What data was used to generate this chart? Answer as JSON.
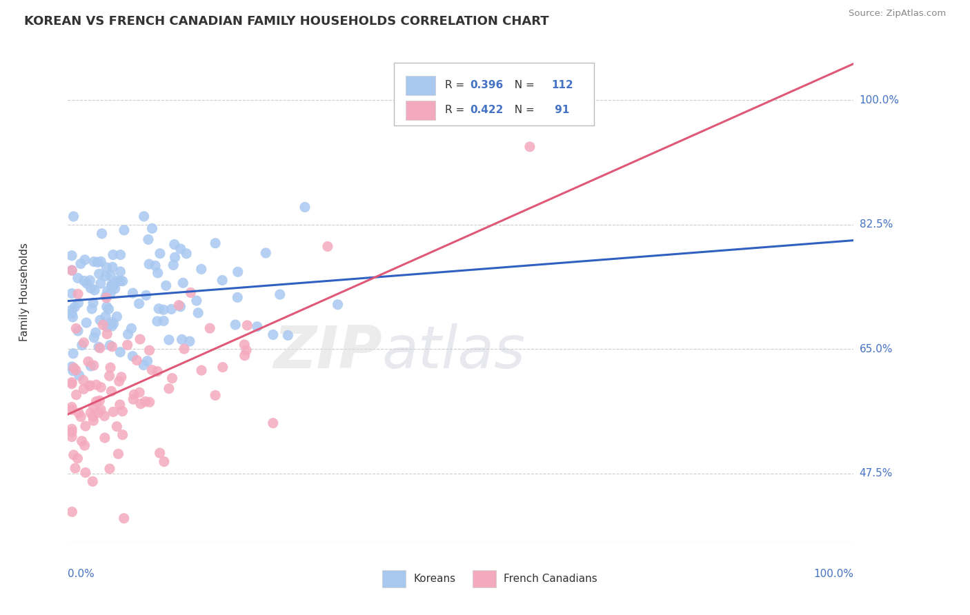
{
  "title": "KOREAN VS FRENCH CANADIAN FAMILY HOUSEHOLDS CORRELATION CHART",
  "source": "Source: ZipAtlas.com",
  "ylabel": "Family Households",
  "yticks": [
    0.475,
    0.65,
    0.825,
    1.0
  ],
  "ytick_labels": [
    "47.5%",
    "65.0%",
    "82.5%",
    "100.0%"
  ],
  "xlim": [
    0.0,
    1.0
  ],
  "ylim": [
    0.38,
    1.08
  ],
  "korean_color": "#A8C8F0",
  "french_color": "#F4AABE",
  "korean_line_color": "#3060C0",
  "french_line_color": "#E05878",
  "legend_korean_R": "0.396",
  "legend_korean_N": "112",
  "legend_french_R": "0.422",
  "legend_french_N": "91",
  "watermark_zip": "ZIP",
  "watermark_atlas": "atlas",
  "background_color": "#FFFFFF",
  "grid_color": "#CCCCCC",
  "label_color": "#4472C4",
  "text_color": "#333333",
  "source_color": "#888888"
}
